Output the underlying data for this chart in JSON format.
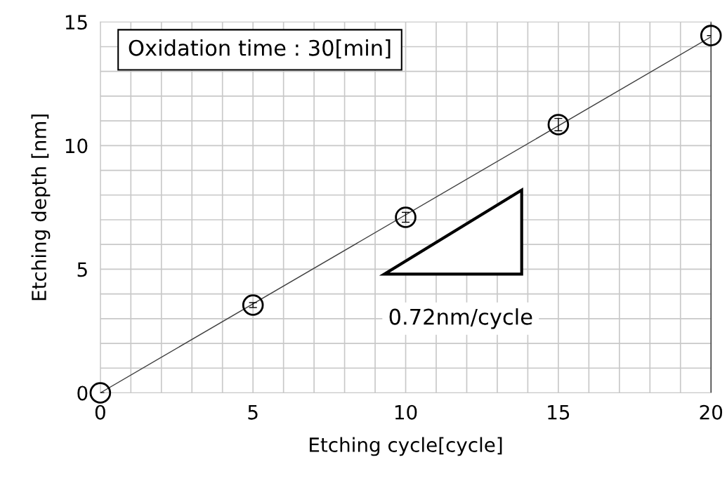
{
  "chart_data": {
    "type": "scatter",
    "xlabel": "Etching cycle[cycle]",
    "ylabel": "Etching depth [nm]",
    "xlim": [
      0,
      20
    ],
    "ylim": [
      0,
      15
    ],
    "xticks": [
      0,
      {
        "value": 1,
        "label": null
      },
      {
        "value": 2,
        "label": null
      },
      {
        "value": 3,
        "label": null
      },
      {
        "value": 4,
        "label": null
      },
      5,
      {
        "value": 6,
        "label": null
      },
      {
        "value": 7,
        "label": null
      },
      {
        "value": 8,
        "label": null
      },
      {
        "value": 9,
        "label": null
      },
      10,
      {
        "value": 11,
        "label": null
      },
      {
        "value": 12,
        "label": null
      },
      {
        "value": 13,
        "label": null
      },
      {
        "value": 14,
        "label": null
      },
      15,
      {
        "value": 16,
        "label": null
      },
      {
        "value": 17,
        "label": null
      },
      {
        "value": 18,
        "label": null
      },
      {
        "value": 19,
        "label": null
      },
      20
    ],
    "yticks": [
      0,
      {
        "value": 1,
        "label": null
      },
      {
        "value": 2,
        "label": null
      },
      {
        "value": 3,
        "label": null
      },
      {
        "value": 4,
        "label": null
      },
      5,
      {
        "value": 6,
        "label": null
      },
      {
        "value": 7,
        "label": null
      },
      {
        "value": 8,
        "label": null
      },
      {
        "value": 9,
        "label": null
      },
      10,
      {
        "value": 11,
        "label": null
      },
      {
        "value": 12,
        "label": null
      },
      {
        "value": 13,
        "label": null
      },
      {
        "value": 14,
        "label": null
      },
      15
    ],
    "grid": true,
    "series": [
      {
        "marker": "circle",
        "color": "#000000",
        "x": [
          0,
          5,
          10,
          15,
          20
        ],
        "values": [
          0,
          3.55,
          7.1,
          10.85,
          14.45
        ],
        "errors": [
          null,
          0.1,
          0.2,
          0.25,
          null
        ]
      },
      {
        "type": "line",
        "color": "#404040",
        "x": [
          0,
          20
        ],
        "values": [
          0,
          14.4
        ]
      }
    ],
    "annotations": [
      "Oxidation time : 30[min]",
      "0.72nm/cycle"
    ]
  }
}
